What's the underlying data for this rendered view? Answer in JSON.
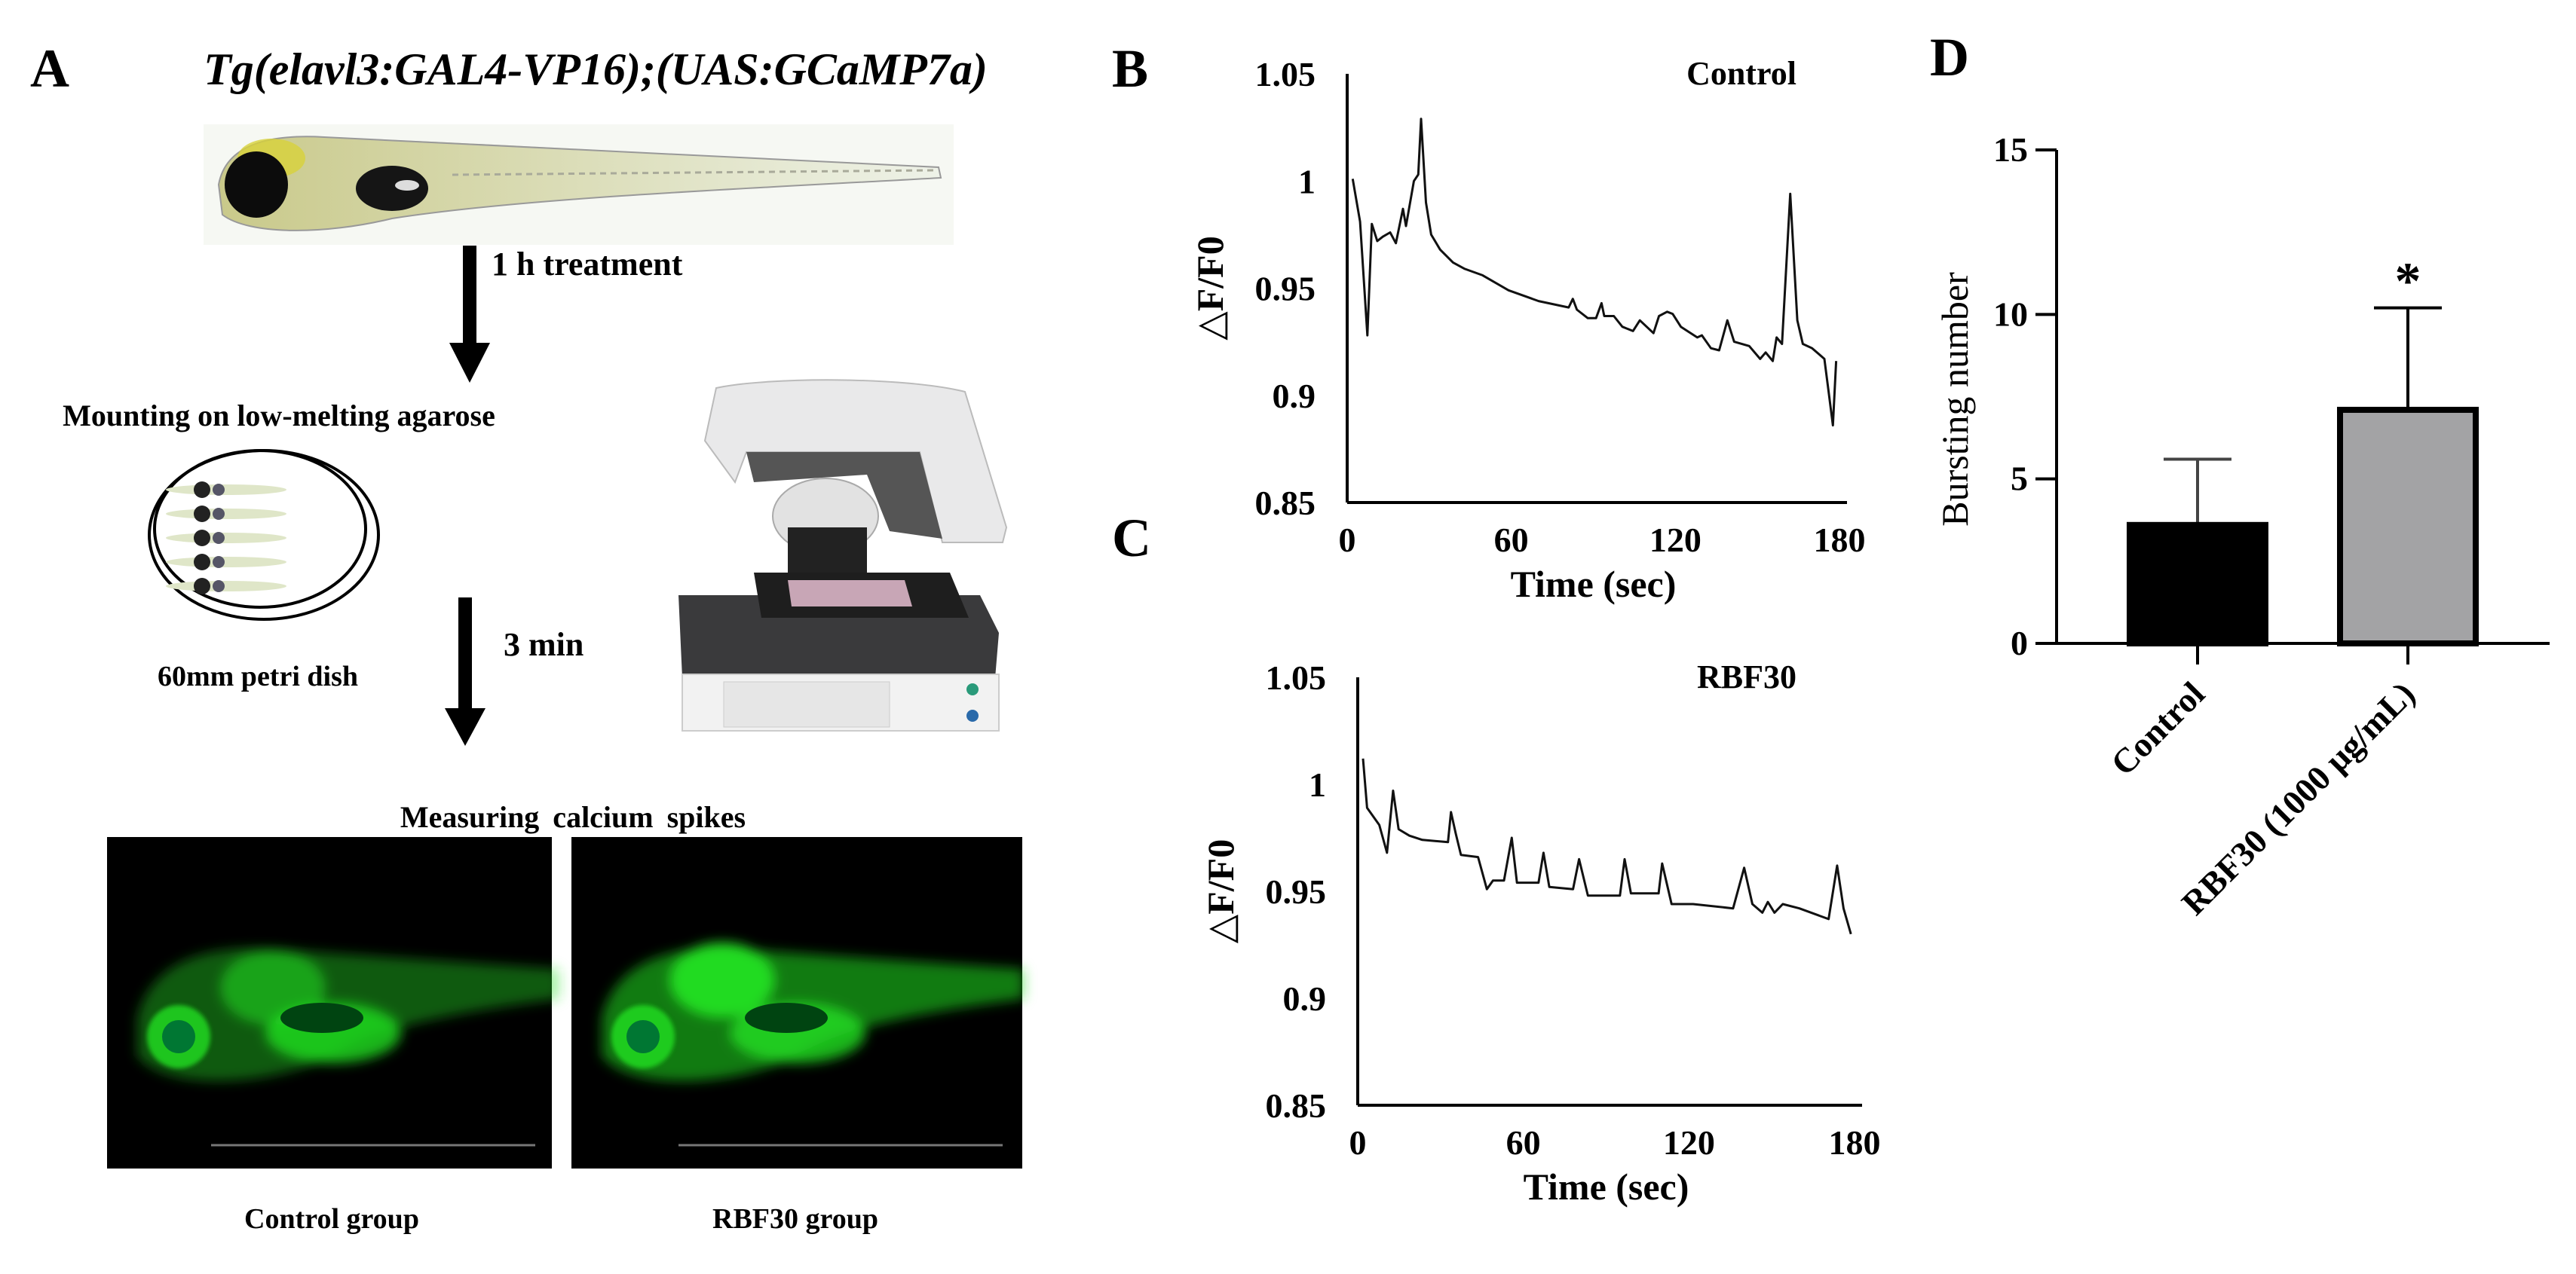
{
  "panel_a": {
    "label": "A",
    "title": "Tg(elavl3:GAL4-VP16);(UAS:GCaMP7a)",
    "step1": "1 h treatment",
    "mounting": "Mounting on low-melting agarose",
    "dish": "60mm petri dish",
    "step2": "3 min",
    "measuring": "Measuring calcium spikes",
    "image_labels": [
      "Control  group",
      "RBF30 group"
    ],
    "fluorescence_color": "#22e022"
  },
  "chart_data": [
    {
      "panel_label": "B",
      "type": "line",
      "annotation": "Control",
      "xlabel": "Time (sec)",
      "ylabel": "△F/F0",
      "xlim": [
        0,
        180
      ],
      "ylim": [
        0.85,
        1.05
      ],
      "xticks": [
        "0",
        "60",
        "120",
        "180"
      ],
      "yticks": [
        "1.05",
        "1",
        "0.95",
        "0.9",
        "0.85"
      ],
      "grid": false,
      "x": [
        2,
        4.7,
        7.4,
        9,
        11,
        13,
        15.7,
        17.8,
        20.4,
        21.5,
        24.4,
        26,
        27,
        28.8,
        30.7,
        34,
        38.7,
        43,
        49.5,
        59,
        70,
        81,
        82.5,
        84,
        88,
        91,
        93,
        94,
        97.5,
        100.6,
        104.5,
        107,
        112,
        114,
        117,
        119,
        122,
        128,
        129.7,
        133,
        136,
        139,
        141.5,
        147,
        151,
        153,
        155.6,
        157,
        159,
        162,
        164.6,
        166.6,
        170,
        174.5,
        176,
        177.6,
        178.8
      ],
      "y": [
        1.001,
        0.981,
        0.928,
        0.98,
        0.972,
        0.974,
        0.976,
        0.971,
        0.987,
        0.979,
        1.0,
        1.003,
        1.029,
        0.99,
        0.975,
        0.968,
        0.962,
        0.959,
        0.956,
        0.949,
        0.944,
        0.941,
        0.945,
        0.94,
        0.936,
        0.936,
        0.943,
        0.937,
        0.937,
        0.932,
        0.93,
        0.935,
        0.929,
        0.937,
        0.939,
        0.938,
        0.932,
        0.927,
        0.928,
        0.922,
        0.921,
        0.935,
        0.925,
        0.923,
        0.917,
        0.92,
        0.916,
        0.927,
        0.924,
        0.994,
        0.935,
        0.924,
        0.922,
        0.917,
        0.902,
        0.886,
        0.916
      ]
    },
    {
      "panel_label": "C",
      "type": "line",
      "annotation": "RBF30",
      "xlabel": "Time (sec)",
      "ylabel": "△F/F0",
      "xlim": [
        0,
        180
      ],
      "ylim": [
        0.85,
        1.05
      ],
      "xticks": [
        "0",
        "60",
        "120",
        "180"
      ],
      "yticks": [
        "1.05",
        "1",
        "0.95",
        "0.9",
        "0.85"
      ],
      "grid": false,
      "x": [
        1.9,
        3.4,
        7.8,
        10.6,
        12.8,
        14.8,
        18.7,
        23.4,
        32.7,
        33.8,
        35.5,
        37.4,
        43.6,
        46.8,
        49,
        53,
        55.8,
        57.7,
        65.5,
        67.3,
        69.4,
        78,
        80.2,
        83.4,
        95,
        96.7,
        99,
        109,
        110.3,
        113.7,
        121.5,
        136,
        140,
        143,
        146.6,
        148.6,
        151,
        154,
        160,
        170.6,
        173.7,
        176,
        178.7
      ],
      "y": [
        1.012,
        0.989,
        0.981,
        0.968,
        0.997,
        0.979,
        0.976,
        0.974,
        0.973,
        0.987,
        0.977,
        0.967,
        0.966,
        0.951,
        0.955,
        0.955,
        0.975,
        0.954,
        0.954,
        0.968,
        0.952,
        0.951,
        0.965,
        0.948,
        0.948,
        0.965,
        0.949,
        0.949,
        0.963,
        0.944,
        0.944,
        0.942,
        0.961,
        0.944,
        0.94,
        0.945,
        0.94,
        0.944,
        0.942,
        0.937,
        0.962,
        0.942,
        0.93
      ]
    },
    {
      "panel_label": "D",
      "type": "bar",
      "categories": [
        "Control",
        "RBF30 (1000 μg/mL)"
      ],
      "values": [
        3.6,
        7.1
      ],
      "errors": [
        2.0,
        3.1
      ],
      "colors": [
        "#000000",
        "#a3a3a5"
      ],
      "ylabel": "Bursting number",
      "ylim": [
        0,
        15
      ],
      "yticks": [
        "0",
        "5",
        "10",
        "15"
      ],
      "significance": [
        "",
        "*"
      ],
      "grid": false
    }
  ]
}
